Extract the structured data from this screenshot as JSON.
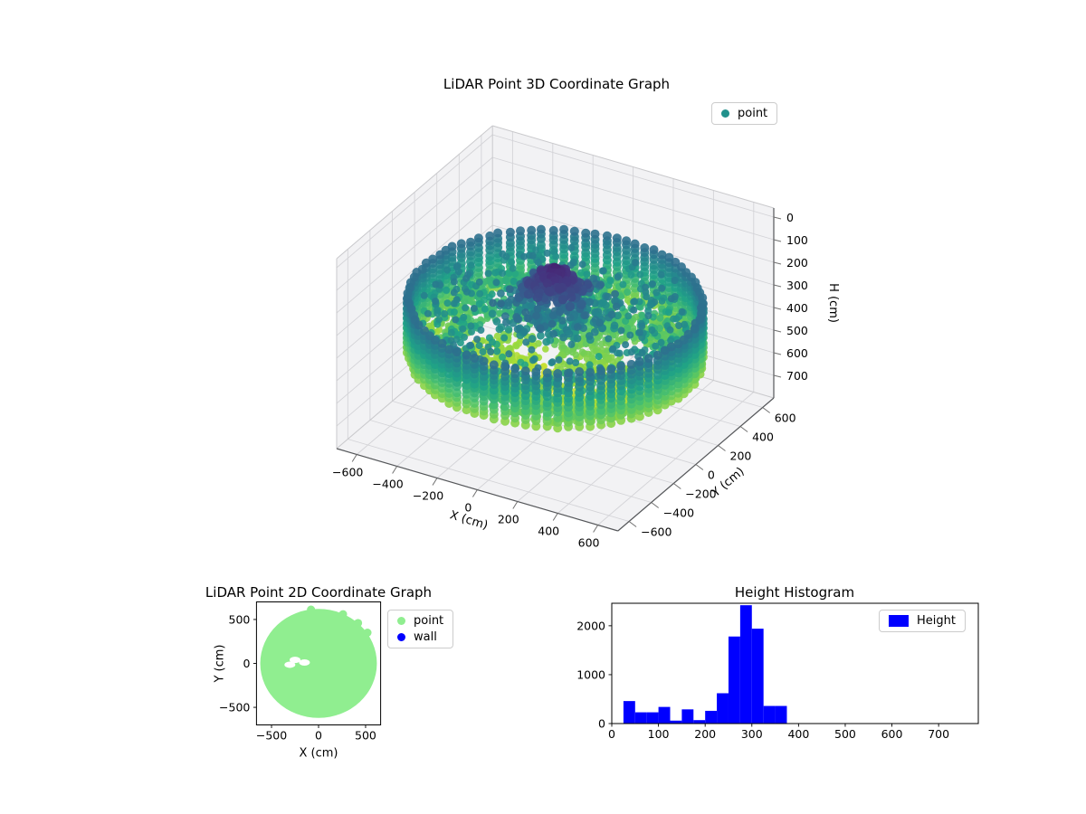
{
  "figure": {
    "background": "#ffffff"
  },
  "chart_data": [
    {
      "id": "lidar-3d",
      "type": "scatter3d",
      "title": "LiDAR Point 3D Coordinate Graph",
      "xlabel": "X (cm)",
      "ylabel": "Y (cm)",
      "zlabel": "H (cm)",
      "xlim": [
        -700,
        700
      ],
      "ylim": [
        -700,
        700
      ],
      "hlim": [
        -40,
        800
      ],
      "h_axis_inverted": true,
      "xticks": [
        -600,
        -400,
        -200,
        0,
        200,
        400,
        600
      ],
      "yticks": [
        -600,
        -400,
        -200,
        0,
        200,
        400,
        600
      ],
      "hticks": [
        0,
        100,
        200,
        300,
        400,
        500,
        600,
        700
      ],
      "legend": [
        {
          "label": "point",
          "marker": "circle",
          "color": "#21918c"
        }
      ],
      "colormap": "viridis",
      "color_by": "H",
      "colormap_range": [
        60,
        600
      ],
      "point_cloud": {
        "summary": "Circular room LiDAR scan: cylindrical wall ring of point columns, bumpy green/yellow floor around H 400-580, teal mid-level scatter, dense dark-purple low-height ceiling cluster at center",
        "wall_ring": {
          "radius_cm": 640,
          "columns": 84,
          "rows": 12,
          "h_range": [
            260,
            500
          ]
        },
        "floor": {
          "radius_cm": 615,
          "points": 2400,
          "h_base": 470,
          "h_range": [
            400,
            580
          ],
          "gap_centers": [
            [
              -360,
              200
            ],
            [
              -118,
              265
            ],
            [
              90,
              520
            ],
            [
              300,
              180
            ]
          ]
        },
        "mid_scatter": {
          "points": 500,
          "radius_cm": 590,
          "h_range": [
            280,
            440
          ]
        },
        "ceiling_cluster": {
          "center": [
            0,
            0
          ],
          "radius_cm": 170,
          "points": 350,
          "h_range": [
            110,
            260
          ]
        },
        "halo": {
          "points": 250,
          "radius_range_cm": [
            60,
            280
          ],
          "h_range": [
            240,
            340
          ]
        }
      }
    },
    {
      "id": "lidar-2d",
      "type": "scatter",
      "title": "LiDAR Point 2D Coordinate Graph",
      "xlabel": "X (cm)",
      "ylabel": "Y (cm)",
      "xlim": [
        -660,
        660
      ],
      "ylim": [
        -700,
        700
      ],
      "xticks": [
        -500,
        0,
        500
      ],
      "yticks": [
        -500,
        0,
        500
      ],
      "legend": [
        {
          "label": "point",
          "marker": "circle",
          "color": "#90ee90"
        },
        {
          "label": "wall",
          "marker": "circle",
          "color": "#0000ff"
        }
      ],
      "disc": {
        "center_cm": [
          0,
          0
        ],
        "radius_cm": 620,
        "color": "#90ee90",
        "gap_centers": [
          [
            -250,
            40
          ],
          [
            -150,
            10
          ],
          [
            -305,
            -15
          ]
        ]
      }
    },
    {
      "id": "height-histogram",
      "type": "bar",
      "title": "Height Histogram",
      "xlabel": "",
      "ylabel": "",
      "xlim": [
        0,
        785
      ],
      "ylim": [
        0,
        2460
      ],
      "xticks": [
        0,
        100,
        200,
        300,
        400,
        500,
        600,
        700
      ],
      "yticks": [
        0,
        1000,
        2000
      ],
      "bar_color": "#0000ff",
      "bin_edges": [
        25,
        50,
        75,
        100,
        125,
        150,
        175,
        200,
        225,
        250,
        275,
        300,
        325,
        350,
        375
      ],
      "counts": [
        460,
        230,
        230,
        340,
        60,
        290,
        70,
        260,
        620,
        1780,
        2420,
        1940,
        360,
        360
      ],
      "legend": [
        {
          "label": "Height",
          "marker": "square",
          "color": "#0000ff"
        }
      ]
    }
  ]
}
